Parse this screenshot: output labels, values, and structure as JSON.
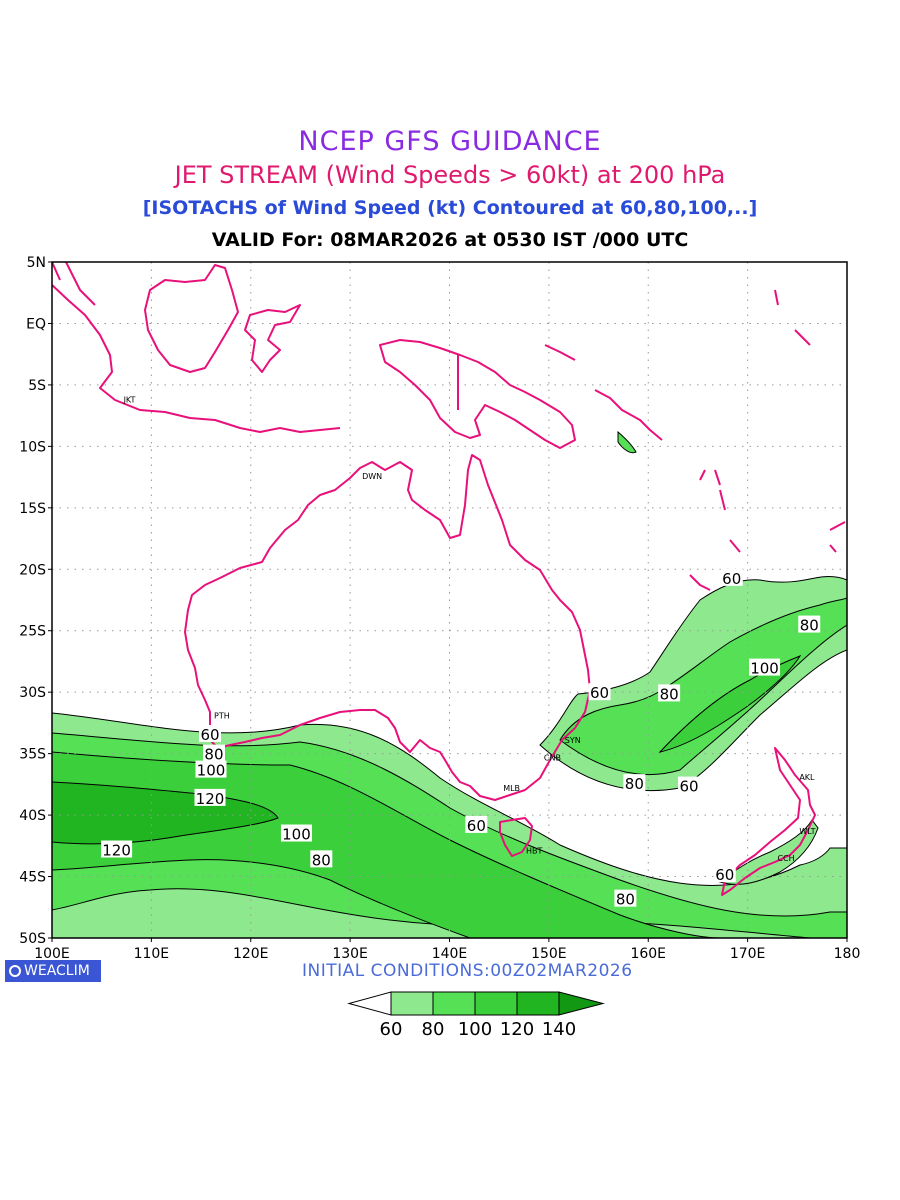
{
  "header": {
    "title": "NCEP GFS GUIDANCE",
    "subtitle": "JET STREAM (Wind Speeds > 60kt) at 200 hPa",
    "description": "[ISOTACHS of Wind Speed (kt) Contoured at 60,80,100,..]",
    "valid": "VALID For: 08MAR2026 at 0530 IST /000 UTC"
  },
  "footer": {
    "logo": "WEACLIM",
    "initial": "INITIAL CONDITIONS:00Z02MAR2026"
  },
  "colors": {
    "coast": "#e8107a",
    "c60": "#8ee88e",
    "c80": "#55e055",
    "c100": "#3ccf3c",
    "c120": "#22b522",
    "c140": "#139813"
  },
  "chart_data": {
    "type": "contour-map",
    "x_range": [
      100,
      180
    ],
    "y_range": [
      -50,
      5
    ],
    "x_ticks": [
      "100E",
      "110E",
      "120E",
      "130E",
      "140E",
      "150E",
      "160E",
      "170E",
      "180"
    ],
    "y_ticks": [
      "5N",
      "EQ",
      "5S",
      "10S",
      "15S",
      "20S",
      "25S",
      "30S",
      "35S",
      "40S",
      "45S",
      "50S"
    ],
    "grid": "dotted",
    "legend": {
      "placement": "bottom-center",
      "values": [
        "60",
        "80",
        "100",
        "120",
        "140"
      ]
    },
    "cities": [
      {
        "name": "JKT",
        "lon": 106.8,
        "lat": -6.2
      },
      {
        "name": "DWN",
        "lon": 130.8,
        "lat": -12.4
      },
      {
        "name": "PTH",
        "lon": 115.9,
        "lat": -31.9
      },
      {
        "name": "SYN",
        "lon": 151.2,
        "lat": -33.9
      },
      {
        "name": "CNB",
        "lon": 149.1,
        "lat": -35.3
      },
      {
        "name": "MLB",
        "lon": 145.0,
        "lat": -37.8
      },
      {
        "name": "HBT",
        "lon": 147.3,
        "lat": -42.9
      },
      {
        "name": "AKL",
        "lon": 174.8,
        "lat": -36.9
      },
      {
        "name": "WLT",
        "lon": 174.8,
        "lat": -41.3
      },
      {
        "name": "CCH",
        "lon": 172.6,
        "lat": -43.5
      }
    ],
    "contour_labels": [
      {
        "text": "60",
        "lon": 115.9,
        "lat": -33.4
      },
      {
        "text": "80",
        "lon": 116.3,
        "lat": -35.0
      },
      {
        "text": "100",
        "lon": 116.0,
        "lat": -36.3
      },
      {
        "text": "120",
        "lon": 115.9,
        "lat": -38.6
      },
      {
        "text": "100",
        "lon": 124.6,
        "lat": -41.5
      },
      {
        "text": "80",
        "lon": 127.1,
        "lat": -43.6
      },
      {
        "text": "120",
        "lon": 106.5,
        "lat": -42.8
      },
      {
        "text": "60",
        "lon": 142.7,
        "lat": -40.8
      },
      {
        "text": "80",
        "lon": 157.7,
        "lat": -46.8
      },
      {
        "text": "60",
        "lon": 155.1,
        "lat": -30.0
      },
      {
        "text": "80",
        "lon": 162.1,
        "lat": -30.1
      },
      {
        "text": "100",
        "lon": 171.7,
        "lat": -28.0
      },
      {
        "text": "80",
        "lon": 176.2,
        "lat": -24.5
      },
      {
        "text": "60",
        "lon": 168.4,
        "lat": -20.7
      },
      {
        "text": "80",
        "lon": 158.6,
        "lat": -37.4
      },
      {
        "text": "60",
        "lon": 164.1,
        "lat": -37.6
      },
      {
        "text": "60",
        "lon": 167.7,
        "lat": -44.8
      }
    ]
  }
}
